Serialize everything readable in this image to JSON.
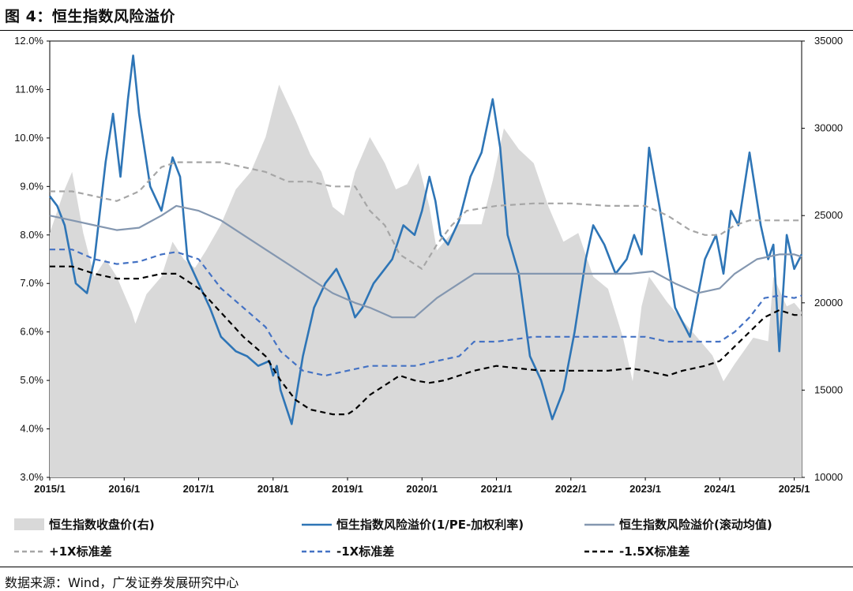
{
  "figure": {
    "title": "图 4：恒生指数风险溢价",
    "source": "数据来源：Wind，广发证券发展研究中心"
  },
  "chart_data": {
    "type": "line",
    "title": "恒生指数风险溢价",
    "x_tick_labels": [
      "2015/1",
      "2016/1",
      "2017/1",
      "2018/1",
      "2019/1",
      "2020/1",
      "2021/1",
      "2022/1",
      "2023/1",
      "2024/1",
      "2025/1"
    ],
    "x_range": [
      2015.0,
      2025.1
    ],
    "y_left": {
      "range": [
        3.0,
        12.0
      ],
      "ticks": [
        "3.0%",
        "4.0%",
        "5.0%",
        "6.0%",
        "7.0%",
        "8.0%",
        "9.0%",
        "10.0%",
        "11.0%",
        "12.0%"
      ]
    },
    "y_right": {
      "range": [
        10000,
        35000
      ],
      "ticks": [
        "10000",
        "15000",
        "20000",
        "25000",
        "30000",
        "35000"
      ]
    },
    "series": [
      {
        "name": "恒生指数收盘价(右)",
        "type": "area",
        "axis": "right",
        "color": "#d9d9d9",
        "x": [
          2015.0,
          2015.2,
          2015.3,
          2015.45,
          2015.6,
          2015.75,
          2015.9,
          2016.1,
          2016.15,
          2016.3,
          2016.5,
          2016.65,
          2016.8,
          2016.95,
          2017.1,
          2017.3,
          2017.5,
          2017.7,
          2017.9,
          2018.08,
          2018.3,
          2018.5,
          2018.65,
          2018.8,
          2018.95,
          2019.1,
          2019.3,
          2019.5,
          2019.65,
          2019.8,
          2019.95,
          2020.1,
          2020.2,
          2020.5,
          2020.8,
          2020.95,
          2021.1,
          2021.3,
          2021.5,
          2021.7,
          2021.9,
          2022.1,
          2022.3,
          2022.5,
          2022.7,
          2022.83,
          2022.95,
          2023.05,
          2023.3,
          2023.5,
          2023.7,
          2023.9,
          2024.05,
          2024.2,
          2024.45,
          2024.65,
          2024.72,
          2024.9,
          2025.0,
          2025.1
        ],
        "values": [
          24000,
          26500,
          27500,
          24000,
          21500,
          22500,
          21500,
          19500,
          18800,
          20500,
          21500,
          23500,
          22500,
          22000,
          23000,
          24500,
          26500,
          27500,
          29500,
          32500,
          30500,
          28500,
          27500,
          25500,
          25000,
          27500,
          29500,
          28000,
          26500,
          26800,
          28000,
          25500,
          23000,
          24500,
          24500,
          27000,
          30000,
          28800,
          28000,
          25500,
          23500,
          24000,
          21500,
          20800,
          18000,
          15500,
          19800,
          21500,
          20000,
          19000,
          18000,
          17000,
          15500,
          16500,
          18000,
          17800,
          21500,
          19800,
          20000,
          19500
        ]
      },
      {
        "name": "恒生指数风险溢价(1/PE-加权利率)",
        "type": "line",
        "axis": "left",
        "color": "#2e75b6",
        "x": [
          2015.0,
          2015.1,
          2015.2,
          2015.35,
          2015.5,
          2015.6,
          2015.75,
          2015.85,
          2015.95,
          2016.05,
          2016.12,
          2016.2,
          2016.35,
          2016.5,
          2016.65,
          2016.75,
          2016.85,
          2017.0,
          2017.15,
          2017.3,
          2017.5,
          2017.65,
          2017.8,
          2017.95,
          2018.0,
          2018.05,
          2018.1,
          2018.25,
          2018.4,
          2018.55,
          2018.7,
          2018.85,
          2019.0,
          2019.1,
          2019.2,
          2019.35,
          2019.5,
          2019.6,
          2019.75,
          2019.9,
          2020.0,
          2020.1,
          2020.18,
          2020.25,
          2020.35,
          2020.5,
          2020.65,
          2020.8,
          2020.95,
          2021.05,
          2021.15,
          2021.3,
          2021.45,
          2021.6,
          2021.75,
          2021.9,
          2022.05,
          2022.2,
          2022.3,
          2022.45,
          2022.6,
          2022.75,
          2022.85,
          2022.95,
          2023.05,
          2023.2,
          2023.4,
          2023.6,
          2023.8,
          2023.95,
          2024.05,
          2024.15,
          2024.25,
          2024.4,
          2024.55,
          2024.65,
          2024.72,
          2024.8,
          2024.9,
          2025.0,
          2025.1
        ],
        "values": [
          8.8,
          8.6,
          8.2,
          7.0,
          6.8,
          7.5,
          9.5,
          10.5,
          9.2,
          10.8,
          11.7,
          10.5,
          9.0,
          8.5,
          9.6,
          9.2,
          7.5,
          7.0,
          6.5,
          5.9,
          5.6,
          5.5,
          5.3,
          5.4,
          5.1,
          5.3,
          4.8,
          4.1,
          5.5,
          6.5,
          7.0,
          7.3,
          6.8,
          6.3,
          6.5,
          7.0,
          7.3,
          7.5,
          8.2,
          8.0,
          8.5,
          9.2,
          8.7,
          8.0,
          7.8,
          8.3,
          9.2,
          9.7,
          10.8,
          9.8,
          8.0,
          7.2,
          5.5,
          5.0,
          4.2,
          4.8,
          6.0,
          7.5,
          8.2,
          7.8,
          7.2,
          7.5,
          8.0,
          7.6,
          9.8,
          8.5,
          6.5,
          5.9,
          7.5,
          8.0,
          7.2,
          8.5,
          8.2,
          9.7,
          8.2,
          7.5,
          7.8,
          5.6,
          8.0,
          7.3,
          7.6
        ]
      },
      {
        "name": "恒生指数风险溢价(滚动均值)",
        "type": "line",
        "axis": "left",
        "color": "#8497b0",
        "x": [
          2015.0,
          2015.3,
          2015.6,
          2015.9,
          2016.2,
          2016.5,
          2016.7,
          2017.0,
          2017.3,
          2017.6,
          2017.9,
          2018.2,
          2018.5,
          2018.8,
          2019.1,
          2019.3,
          2019.6,
          2019.9,
          2020.2,
          2020.5,
          2020.7,
          2021.0,
          2021.5,
          2022.0,
          2022.5,
          2022.8,
          2023.1,
          2023.4,
          2023.7,
          2024.0,
          2024.2,
          2024.5,
          2024.8,
          2025.0,
          2025.1
        ],
        "values": [
          8.4,
          8.3,
          8.2,
          8.1,
          8.15,
          8.4,
          8.6,
          8.5,
          8.3,
          8.0,
          7.7,
          7.4,
          7.1,
          6.8,
          6.6,
          6.5,
          6.3,
          6.3,
          6.7,
          7.0,
          7.2,
          7.2,
          7.2,
          7.2,
          7.2,
          7.2,
          7.25,
          7.0,
          6.8,
          6.9,
          7.2,
          7.5,
          7.6,
          7.6,
          7.55
        ]
      },
      {
        "name": "+1X标准差",
        "type": "line",
        "axis": "left",
        "color": "#a6a6a6",
        "dash": "dashed",
        "x": [
          2015.0,
          2015.3,
          2015.6,
          2015.9,
          2016.2,
          2016.5,
          2016.7,
          2017.0,
          2017.3,
          2017.6,
          2017.9,
          2018.2,
          2018.5,
          2018.8,
          2019.1,
          2019.3,
          2019.5,
          2019.7,
          2020.0,
          2020.2,
          2020.4,
          2020.6,
          2021.0,
          2021.5,
          2022.0,
          2022.5,
          2022.8,
          2023.0,
          2023.3,
          2023.6,
          2023.8,
          2024.0,
          2024.2,
          2024.4,
          2024.6,
          2024.8,
          2025.0,
          2025.1
        ],
        "values": [
          8.9,
          8.9,
          8.8,
          8.7,
          8.9,
          9.4,
          9.5,
          9.5,
          9.5,
          9.4,
          9.3,
          9.1,
          9.1,
          9.0,
          9.0,
          8.5,
          8.2,
          7.6,
          7.3,
          7.8,
          8.2,
          8.5,
          8.6,
          8.65,
          8.65,
          8.6,
          8.6,
          8.6,
          8.4,
          8.1,
          8.0,
          8.0,
          8.2,
          8.3,
          8.3,
          8.3,
          8.3,
          8.3
        ]
      },
      {
        "name": "-1X标准差",
        "type": "line",
        "axis": "left",
        "color": "#4472c4",
        "dash": "dashed",
        "x": [
          2015.0,
          2015.3,
          2015.6,
          2015.9,
          2016.2,
          2016.5,
          2016.7,
          2017.0,
          2017.3,
          2017.6,
          2017.9,
          2018.1,
          2018.4,
          2018.7,
          2019.0,
          2019.3,
          2019.6,
          2019.9,
          2020.2,
          2020.5,
          2020.7,
          2021.0,
          2021.5,
          2022.0,
          2022.5,
          2022.8,
          2023.0,
          2023.3,
          2023.6,
          2023.8,
          2024.0,
          2024.2,
          2024.4,
          2024.6,
          2024.8,
          2025.0,
          2025.1
        ],
        "values": [
          7.7,
          7.7,
          7.5,
          7.4,
          7.45,
          7.6,
          7.65,
          7.5,
          6.9,
          6.5,
          6.1,
          5.6,
          5.2,
          5.1,
          5.2,
          5.3,
          5.3,
          5.3,
          5.4,
          5.5,
          5.8,
          5.8,
          5.9,
          5.9,
          5.9,
          5.9,
          5.9,
          5.8,
          5.8,
          5.8,
          5.8,
          6.0,
          6.3,
          6.7,
          6.75,
          6.7,
          6.75
        ]
      },
      {
        "name": "-1.5X标准差",
        "type": "line",
        "axis": "left",
        "color": "#000000",
        "dash": "dashed",
        "x": [
          2015.0,
          2015.3,
          2015.6,
          2015.9,
          2016.2,
          2016.5,
          2016.7,
          2017.0,
          2017.3,
          2017.6,
          2017.9,
          2018.1,
          2018.3,
          2018.5,
          2018.8,
          2019.0,
          2019.1,
          2019.3,
          2019.5,
          2019.7,
          2019.9,
          2020.1,
          2020.3,
          2020.5,
          2020.7,
          2021.0,
          2021.3,
          2021.6,
          2022.0,
          2022.5,
          2022.8,
          2023.0,
          2023.3,
          2023.5,
          2023.8,
          2024.0,
          2024.2,
          2024.4,
          2024.6,
          2024.8,
          2025.0,
          2025.1
        ],
        "values": [
          7.35,
          7.35,
          7.2,
          7.1,
          7.1,
          7.2,
          7.2,
          6.9,
          6.4,
          5.9,
          5.5,
          5.0,
          4.6,
          4.4,
          4.3,
          4.3,
          4.4,
          4.7,
          4.9,
          5.1,
          5.0,
          4.95,
          5.0,
          5.1,
          5.2,
          5.3,
          5.25,
          5.2,
          5.2,
          5.2,
          5.25,
          5.2,
          5.1,
          5.2,
          5.3,
          5.4,
          5.7,
          6.0,
          6.3,
          6.45,
          6.35,
          6.35
        ]
      }
    ],
    "legend": [
      "恒生指数收盘价(右)",
      "恒生指数风险溢价(1/PE-加权利率)",
      "恒生指数风险溢价(滚动均值)",
      "+1X标准差",
      "-1X标准差",
      "-1.5X标准差"
    ]
  }
}
